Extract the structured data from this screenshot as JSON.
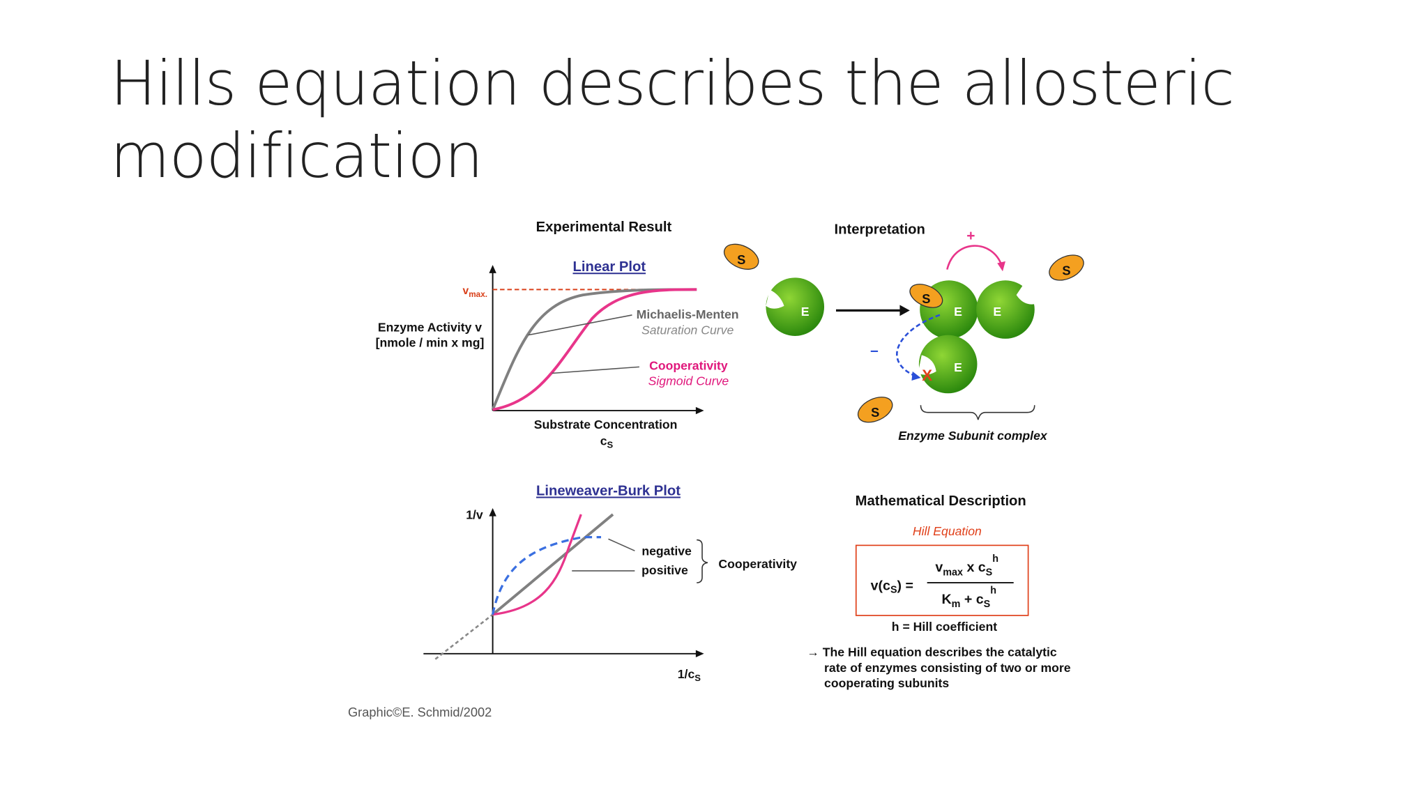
{
  "slide": {
    "title_lines": [
      "Hills equation describes the allosteric",
      "modification"
    ],
    "figure": {
      "experimental": {
        "heading": "Experimental Result",
        "plot_title": "Linear Plot",
        "vmax_main": "v",
        "vmax_sub": "max.",
        "y_label_lines": [
          "Enzyme Activity v",
          "[nmole / min x mg]"
        ],
        "mm_label": "Michaelis-Menten",
        "mm_sub": "Saturation Curve",
        "coop_label": "Cooperativity",
        "coop_sub": "Sigmoid Curve",
        "x_label": "Substrate Concentration",
        "x_symbol_main": "c",
        "x_symbol_sub": "S"
      },
      "interpretation": {
        "heading": "Interpretation",
        "plus": "+",
        "minus": "–",
        "block": "X",
        "enzyme_letters": [
          "E",
          "E",
          "E",
          "E"
        ],
        "substrate_letters": [
          "S",
          "S",
          "S",
          "S"
        ],
        "complex_label": "Enzyme Subunit complex"
      },
      "lineweaver": {
        "plot_title": "Lineweaver-Burk Plot",
        "y_label": "1/v",
        "x_label_main": "1/c",
        "x_label_sub": "S",
        "negative": "negative",
        "positive": "positive",
        "group_label": "Cooperativity"
      },
      "math": {
        "heading": "Mathematical Description",
        "equation_name": "Hill Equation",
        "lhs_main": "v(c",
        "lhs_sub": "S",
        "lhs_end": ") =",
        "num_v": "v",
        "num_v_sub": "max",
        "num_mid": " x c",
        "num_c_sub": "S",
        "num_exp": "h",
        "den_k": "K",
        "den_k_sub": "m",
        "den_mid": " + c",
        "den_c_sub": "S",
        "den_exp": "h",
        "coefficient_note": "h = Hill coefficient",
        "note_lines": [
          "→ The Hill equation describes the catalytic",
          "rate of enzymes consisting of two or more",
          "cooperating subunits"
        ]
      },
      "credit": "Graphic©E. Schmid/2002"
    }
  }
}
